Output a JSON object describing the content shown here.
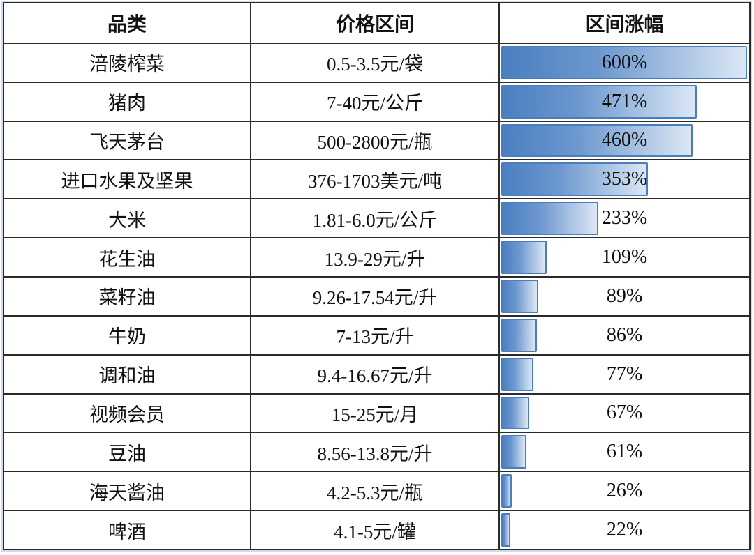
{
  "table": {
    "headers": {
      "category": "品类",
      "price_range": "价格区间",
      "increase": "区间涨幅"
    }
  },
  "rows": [
    {
      "category": "涪陵榨菜",
      "price_range": "0.5-3.5元/袋",
      "increase_label": "600%",
      "increase_value": 600
    },
    {
      "category": "猪肉",
      "price_range": "7-40元/公斤",
      "increase_label": "471%",
      "increase_value": 471
    },
    {
      "category": "飞天茅台",
      "price_range": "500-2800元/瓶",
      "increase_label": "460%",
      "increase_value": 460
    },
    {
      "category": "进口水果及坚果",
      "price_range": "376-1703美元/吨",
      "increase_label": "353%",
      "increase_value": 353
    },
    {
      "category": "大米",
      "price_range": "1.81-6.0元/公斤",
      "increase_label": "233%",
      "increase_value": 233
    },
    {
      "category": "花生油",
      "price_range": "13.9-29元/升",
      "increase_label": "109%",
      "increase_value": 109
    },
    {
      "category": "菜籽油",
      "price_range": "9.26-17.54元/升",
      "increase_label": "89%",
      "increase_value": 89
    },
    {
      "category": "牛奶",
      "price_range": "7-13元/升",
      "increase_label": "86%",
      "increase_value": 86
    },
    {
      "category": "调和油",
      "price_range": "9.4-16.67元/升",
      "increase_label": "77%",
      "increase_value": 77
    },
    {
      "category": "视频会员",
      "price_range": "15-25元/月",
      "increase_label": "67%",
      "increase_value": 67
    },
    {
      "category": "豆油",
      "price_range": "8.56-13.8元/升",
      "increase_label": "61%",
      "increase_value": 61
    },
    {
      "category": "海天酱油",
      "price_range": "4.2-5.3元/瓶",
      "increase_label": "26%",
      "increase_value": 26
    },
    {
      "category": "啤酒",
      "price_range": "4.1-5元/罐",
      "increase_label": "22%",
      "increase_value": 22
    }
  ],
  "chart_data": {
    "type": "bar",
    "title": "",
    "orientation": "horizontal",
    "columns": [
      "品类",
      "价格区间",
      "区间涨幅"
    ],
    "categories": [
      "涪陵榨菜",
      "猪肉",
      "飞天茅台",
      "进口水果及坚果",
      "大米",
      "花生油",
      "菜籽油",
      "牛奶",
      "调和油",
      "视频会员",
      "豆油",
      "海天酱油",
      "啤酒"
    ],
    "price_ranges": [
      "0.5-3.5元/袋",
      "7-40元/公斤",
      "500-2800元/瓶",
      "376-1703美元/吨",
      "1.81-6.0元/公斤",
      "13.9-29元/升",
      "9.26-17.54元/升",
      "7-13元/升",
      "9.4-16.67元/升",
      "15-25元/月",
      "8.56-13.8元/升",
      "4.2-5.3元/瓶",
      "4.1-5元/罐"
    ],
    "values": [
      600,
      471,
      460,
      353,
      233,
      109,
      89,
      86,
      77,
      67,
      61,
      26,
      22
    ],
    "value_suffix": "%",
    "xlim": [
      0,
      600
    ],
    "grid": false,
    "legend": "none",
    "colors": {
      "bar_gradient_start": "#4a7fc1",
      "bar_gradient_end": "#dce7f5",
      "bar_border": "#4a7dbd",
      "grid_line": "#2b2b2b",
      "outer_halo": "#cfdcec",
      "text": "#111111"
    }
  }
}
